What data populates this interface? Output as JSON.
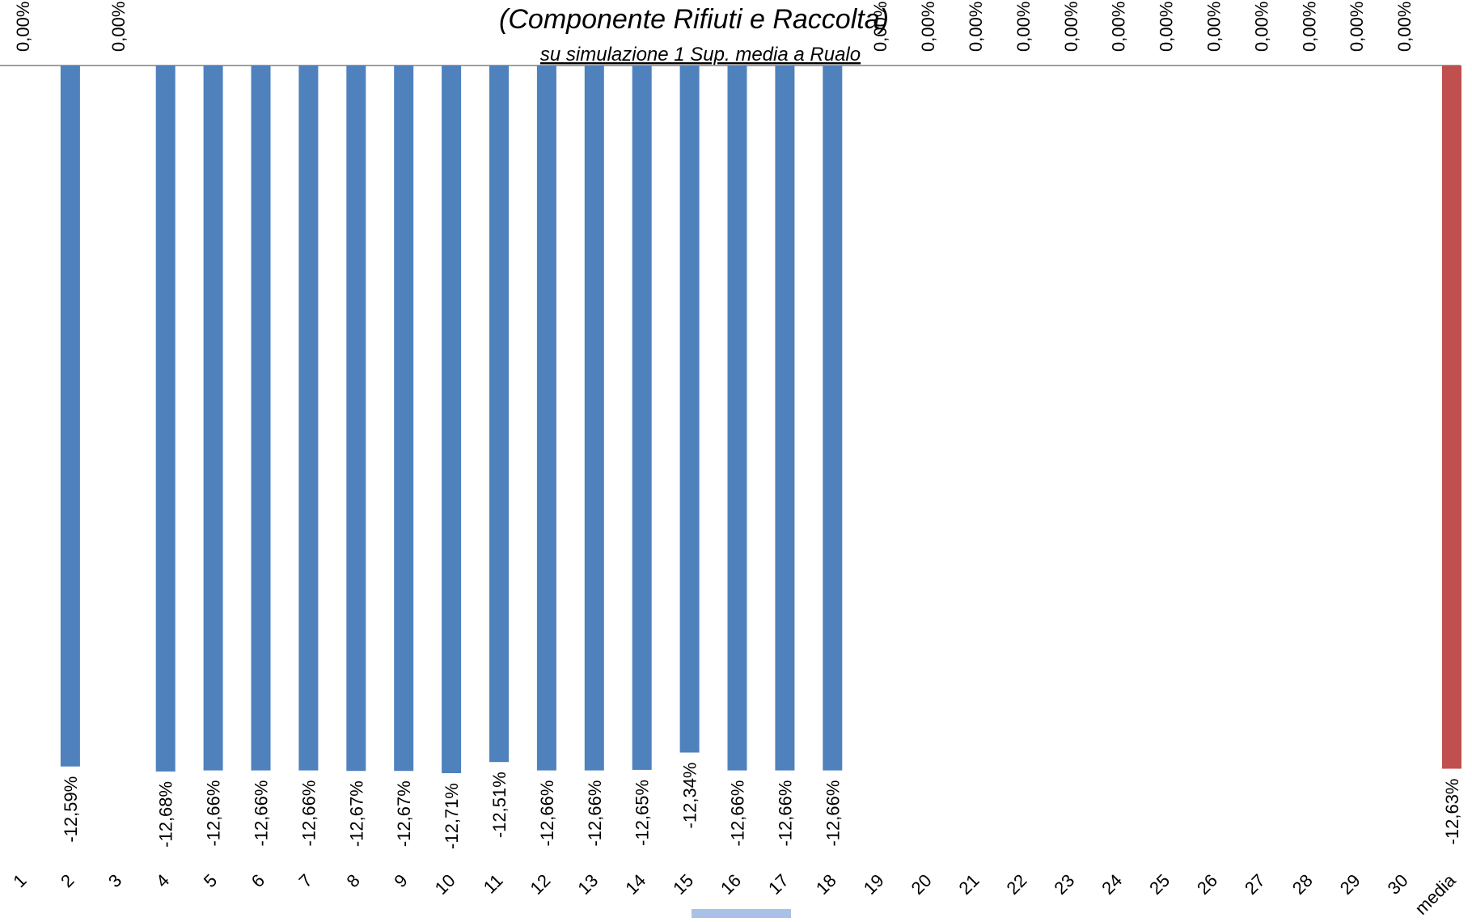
{
  "chart_data": {
    "type": "bar",
    "title": "(Componente Rifiuti  e Raccolta)",
    "subtitle": "su simulazione 1 Sup. media a Rualo",
    "categories": [
      "1",
      "2",
      "3",
      "4",
      "5",
      "6",
      "7",
      "8",
      "9",
      "10",
      "11",
      "12",
      "13",
      "14",
      "15",
      "16",
      "17",
      "18",
      "19",
      "20",
      "21",
      "22",
      "23",
      "24",
      "25",
      "26",
      "27",
      "28",
      "29",
      "30",
      "media"
    ],
    "values": [
      0,
      -12.59,
      0,
      -12.68,
      -12.66,
      -12.66,
      -12.66,
      -12.67,
      -12.67,
      -12.71,
      -12.51,
      -12.66,
      -12.66,
      -12.65,
      -12.34,
      -12.66,
      -12.66,
      -12.66,
      0,
      0,
      0,
      0,
      0,
      0,
      0,
      0,
      0,
      0,
      0,
      0,
      -12.63
    ],
    "data_labels": [
      "0,00%",
      "-12,59%",
      "0,00%",
      "-12,68%",
      "-12,66%",
      "-12,66%",
      "-12,66%",
      "-12,67%",
      "-12,67%",
      "-12,71%",
      "-12,51%",
      "-12,66%",
      "-12,66%",
      "-12,65%",
      "-12,34%",
      "-12,66%",
      "-12,66%",
      "-12,66%",
      "0,00%",
      "0,00%",
      "0,00%",
      "0,00%",
      "0,00%",
      "0,00%",
      "0,00%",
      "0,00%",
      "0,00%",
      "0,00%",
      "0,00%",
      "0,00%",
      "-12,63%"
    ],
    "units": "%",
    "ylim": [
      -12.8,
      0
    ],
    "grid": false,
    "colors": {
      "bar": "#4F81BD",
      "average_bar": "#C0504D",
      "axis": "#808080"
    }
  }
}
